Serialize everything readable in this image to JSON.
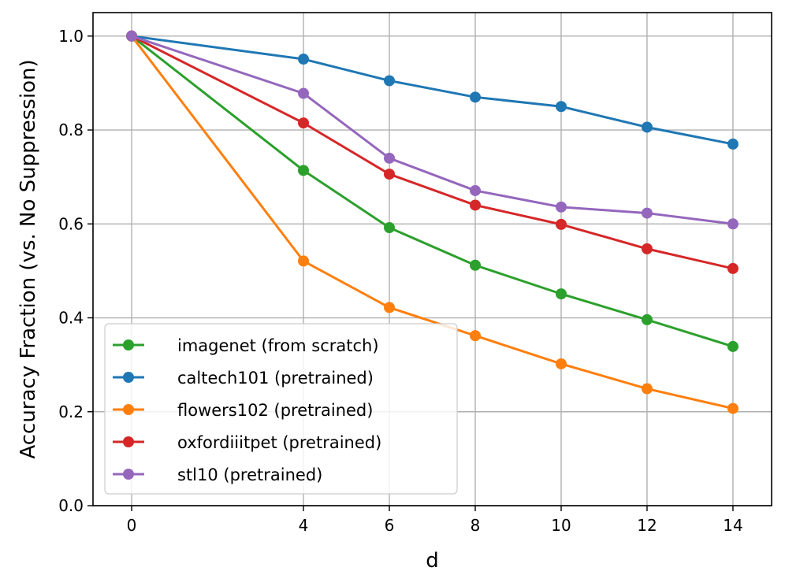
{
  "chart_data": {
    "type": "line",
    "title": "",
    "xlabel": "d",
    "ylabel": "Accuracy Fraction (vs. No Suppression)",
    "x": [
      0,
      4,
      6,
      8,
      10,
      12,
      14
    ],
    "xlim": [
      -0.9,
      14.9
    ],
    "ylim": [
      0.0,
      1.05
    ],
    "xticks": [
      0,
      4,
      6,
      8,
      10,
      12,
      14
    ],
    "xtick_labels": [
      "0",
      "4",
      "6",
      "8",
      "10",
      "12",
      "14"
    ],
    "yticks": [
      0.0,
      0.2,
      0.4,
      0.6,
      0.8,
      1.0
    ],
    "ytick_labels": [
      "0.0",
      "0.2",
      "0.4",
      "0.6",
      "0.8",
      "1.0"
    ],
    "grid": true,
    "legend_position": "lower-left",
    "series": [
      {
        "name": "imagenet (from scratch)",
        "color": "#2ca02c",
        "values": [
          1.0,
          0.714,
          0.592,
          0.512,
          0.451,
          0.396,
          0.339
        ]
      },
      {
        "name": "caltech101 (pretrained)",
        "color": "#1f77b4",
        "values": [
          1.0,
          0.951,
          0.905,
          0.87,
          0.85,
          0.806,
          0.77
        ]
      },
      {
        "name": "flowers102 (pretrained)",
        "color": "#ff7f0e",
        "values": [
          1.0,
          0.521,
          0.422,
          0.362,
          0.302,
          0.249,
          0.207
        ]
      },
      {
        "name": "oxfordiiitpet (pretrained)",
        "color": "#d62728",
        "values": [
          1.0,
          0.815,
          0.706,
          0.64,
          0.599,
          0.547,
          0.505
        ]
      },
      {
        "name": "stl10 (pretrained)",
        "color": "#9467bd",
        "values": [
          1.0,
          0.878,
          0.74,
          0.671,
          0.636,
          0.623,
          0.6
        ]
      }
    ]
  }
}
